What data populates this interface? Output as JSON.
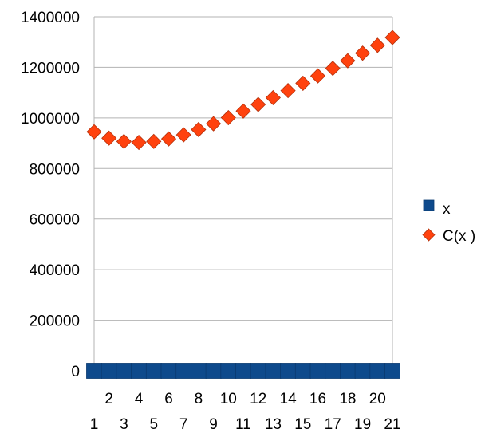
{
  "chart_data": {
    "type": "scatter",
    "x": [
      1,
      2,
      3,
      4,
      5,
      6,
      7,
      8,
      9,
      10,
      11,
      12,
      13,
      14,
      15,
      16,
      17,
      18,
      19,
      20,
      21
    ],
    "categories": [
      "1",
      "2",
      "3",
      "4",
      "5",
      "6",
      "7",
      "8",
      "9",
      "10",
      "11",
      "12",
      "13",
      "14",
      "15",
      "16",
      "17",
      "18",
      "19",
      "20",
      "21"
    ],
    "series": [
      {
        "name": "x",
        "marker": "square",
        "color": "#0e4a8c",
        "values": [
          1,
          2,
          3,
          4,
          5,
          6,
          7,
          8,
          9,
          10,
          11,
          12,
          13,
          14,
          15,
          16,
          17,
          18,
          19,
          20,
          21
        ]
      },
      {
        "name": "C(x )",
        "marker": "diamond",
        "color": "#ff420e",
        "values": [
          945000,
          920000,
          907000,
          903000,
          907000,
          917000,
          933000,
          954000,
          977000,
          1001000,
          1027000,
          1053000,
          1080000,
          1108000,
          1137000,
          1166000,
          1196000,
          1226000,
          1256000,
          1287000,
          1318000
        ]
      }
    ],
    "y_ticks": [
      "0",
      "200000",
      "400000",
      "600000",
      "800000",
      "1000000",
      "1200000",
      "1400000"
    ],
    "ylim": [
      0,
      1400000
    ],
    "grid": "horizontal",
    "legend_position": "right",
    "title": "",
    "xlabel": "",
    "ylabel": ""
  }
}
